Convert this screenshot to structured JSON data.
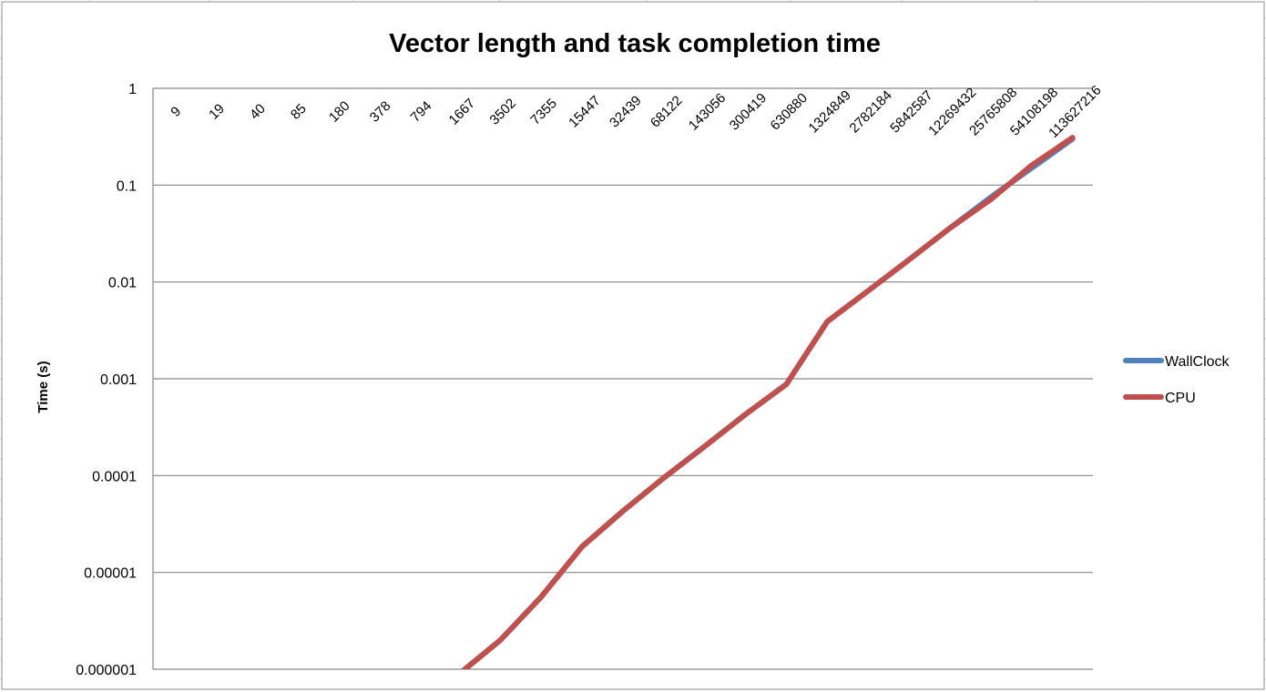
{
  "chart_data": {
    "type": "line",
    "title": "Vector length and task completion time",
    "xlabel": "",
    "ylabel": "Time (s)",
    "y_scale": "log",
    "ylim": [
      1e-06,
      1
    ],
    "y_ticks": [
      "1",
      "0.1",
      "0.01",
      "0.001",
      "0.0001",
      "0.00001",
      "0.000001"
    ],
    "y_tick_values": [
      1,
      0.1,
      0.01,
      0.001,
      0.0001,
      1e-05,
      1e-06
    ],
    "x_axis_position": "top",
    "grid": true,
    "legend_position": "right",
    "categories": [
      "9",
      "19",
      "40",
      "85",
      "180",
      "378",
      "794",
      "1667",
      "3502",
      "7355",
      "15447",
      "32439",
      "68122",
      "143056",
      "300419",
      "630880",
      "1324849",
      "2782184",
      "5842587",
      "12269432",
      "25765808",
      "54108198",
      "113627216"
    ],
    "series": [
      {
        "name": "WallClock",
        "color": "#4f81bd",
        "values": [
          null,
          null,
          null,
          null,
          null,
          null,
          null,
          9e-07,
          2e-06,
          5.6e-06,
          1.85e-05,
          4.3e-05,
          9.5e-05,
          0.0002,
          0.00043,
          0.00088,
          0.0039,
          0.0081,
          0.017,
          0.036,
          0.075,
          0.15,
          0.3
        ]
      },
      {
        "name": "CPU",
        "color": "#c0504d",
        "values": [
          null,
          null,
          null,
          null,
          null,
          null,
          null,
          9e-07,
          2e-06,
          5.6e-06,
          1.85e-05,
          4.3e-05,
          9.5e-05,
          0.0002,
          0.00043,
          0.00088,
          0.0039,
          0.0081,
          0.017,
          0.036,
          0.071,
          0.16,
          0.31
        ]
      }
    ]
  }
}
